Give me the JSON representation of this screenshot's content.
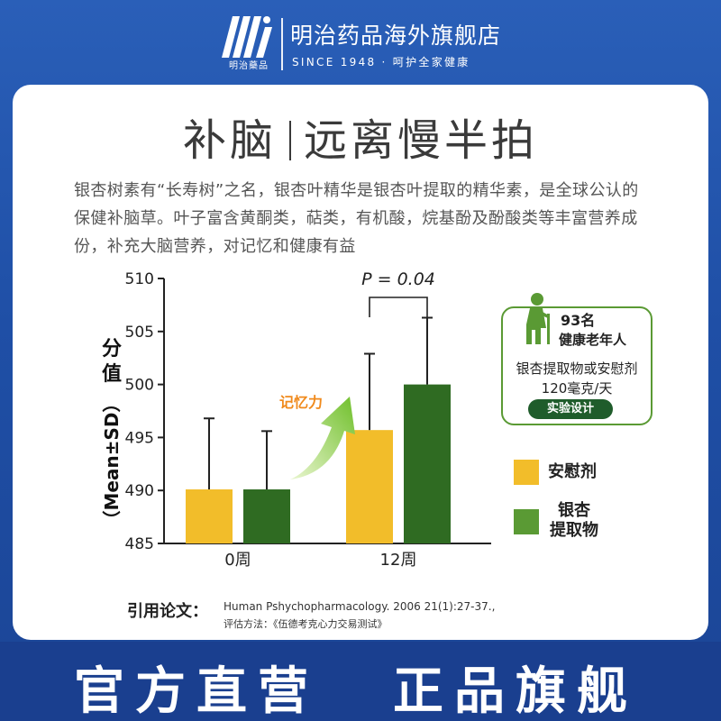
{
  "header": {
    "logo_sub": "明治藥品",
    "store_name": "明治药品海外旗舰店",
    "since": "SINCE 1948 · 呵护全家健康"
  },
  "title": {
    "left": "补脑",
    "right": "远离慢半拍"
  },
  "description": "银杏树素有“长寿树”之名，银杏叶精华是银杏叶提取的精华素，是全球公认的保健补脑草。叶子富含黄酮类，萜类，有机酸，烷基酚及酚酸类等丰富营养成份，补充大脑营养，对记忆和健康有益",
  "study": {
    "count": "93名",
    "who": "健康老年人",
    "line1": "银杏提取物或安慰剂",
    "line2": "120毫克/天",
    "design_label": "实验设计"
  },
  "chart_data": {
    "type": "bar",
    "categories": [
      "0周",
      "12周"
    ],
    "series": [
      {
        "name": "安慰剂",
        "values": [
          490.1,
          495.7
        ],
        "sd": [
          6.7,
          7.2
        ],
        "color": "#f2bd2a"
      },
      {
        "name": "银杏提取物",
        "values": [
          490.1,
          500.0
        ],
        "sd": [
          5.5,
          6.3
        ],
        "color": "#2f6b22"
      }
    ],
    "ylabel": "分值（Mean±SD）",
    "ylim": [
      485,
      510
    ],
    "yticks": [
      485,
      490,
      495,
      500,
      505,
      510
    ],
    "annotation": "P = 0.04",
    "arrow_label": "记忆力",
    "legend": [
      "安慰剂",
      "银杏\n提取物"
    ],
    "legend_position": "right"
  },
  "citation": {
    "label": "引用论文：",
    "text": "Human Pshychopharmacology. 2006 21(1):27-37.,",
    "method": "评估方法：《伍德考克心力交易测试》"
  },
  "banner": {
    "left": "官方直营",
    "right": "正品旗舰"
  },
  "colors": {
    "brand_blue": "#1f4fa6",
    "placebo": "#f2bd2a",
    "ginkgo": "#2f6b22",
    "legend_green": "#5a9a34"
  }
}
